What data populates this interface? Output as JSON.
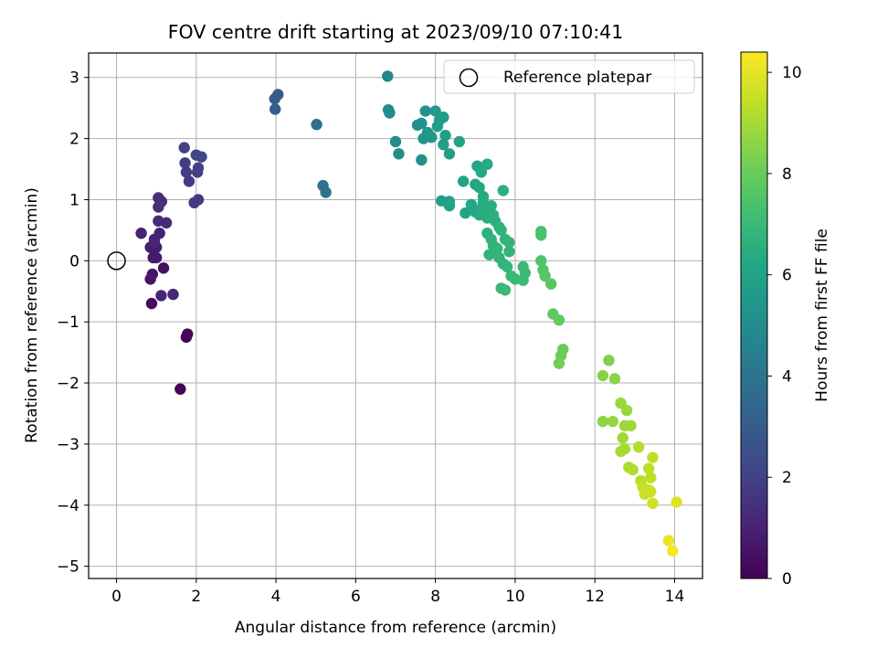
{
  "chart_data": {
    "type": "scatter",
    "title": "FOV centre drift starting at 2023/09/10 07:10:41",
    "xlabel": "Angular distance from reference (arcmin)",
    "ylabel": "Rotation from reference (arcmin)",
    "xlim": [
      -0.7,
      14.7
    ],
    "ylim": [
      -5.2,
      3.4
    ],
    "xticks": [
      "0",
      "2",
      "4",
      "6",
      "8",
      "10",
      "12",
      "14"
    ],
    "yticks": [
      "3",
      "2",
      "1",
      "0",
      "−1",
      "−2",
      "−3",
      "−4",
      "−5"
    ],
    "grid": true,
    "legend": {
      "placement": "top-right",
      "entries": [
        "Reference platepar"
      ]
    },
    "reference_point": {
      "x": 0,
      "y": 0
    },
    "colorbar": {
      "label": "Hours from first FF file",
      "ticks": [
        "0",
        "2",
        "4",
        "6",
        "8",
        "10"
      ],
      "range": [
        0,
        10.4
      ],
      "colormap": "viridis"
    },
    "points": [
      {
        "x": 1.6,
        "y": -2.1,
        "t": 0.1
      },
      {
        "x": 1.75,
        "y": -1.25,
        "t": 0.1
      },
      {
        "x": 1.78,
        "y": -1.2,
        "t": 0.15
      },
      {
        "x": 0.88,
        "y": -0.7,
        "t": 0.3
      },
      {
        "x": 1.18,
        "y": -0.12,
        "t": 0.5
      },
      {
        "x": 0.85,
        "y": -0.3,
        "t": 0.6
      },
      {
        "x": 0.9,
        "y": -0.22,
        "t": 0.65
      },
      {
        "x": 0.92,
        "y": 0.05,
        "t": 0.7
      },
      {
        "x": 1.0,
        "y": 0.05,
        "t": 0.75
      },
      {
        "x": 0.85,
        "y": 0.22,
        "t": 0.8
      },
      {
        "x": 1.0,
        "y": 0.22,
        "t": 0.85
      },
      {
        "x": 0.95,
        "y": 0.35,
        "t": 0.9
      },
      {
        "x": 1.08,
        "y": 0.45,
        "t": 0.95
      },
      {
        "x": 0.62,
        "y": 0.45,
        "t": 1.0
      },
      {
        "x": 0.95,
        "y": 0.3,
        "t": 1.05
      },
      {
        "x": 1.12,
        "y": -0.57,
        "t": 1.1
      },
      {
        "x": 1.42,
        "y": -0.55,
        "t": 1.15
      },
      {
        "x": 1.05,
        "y": 0.65,
        "t": 1.2
      },
      {
        "x": 1.25,
        "y": 0.62,
        "t": 1.25
      },
      {
        "x": 1.05,
        "y": 0.88,
        "t": 1.3
      },
      {
        "x": 1.05,
        "y": 1.03,
        "t": 1.35
      },
      {
        "x": 1.13,
        "y": 0.97,
        "t": 1.4
      },
      {
        "x": 1.95,
        "y": 0.95,
        "t": 1.7
      },
      {
        "x": 2.05,
        "y": 1.0,
        "t": 1.75
      },
      {
        "x": 1.82,
        "y": 1.3,
        "t": 1.8
      },
      {
        "x": 1.75,
        "y": 1.45,
        "t": 1.85
      },
      {
        "x": 1.72,
        "y": 1.6,
        "t": 1.9
      },
      {
        "x": 2.03,
        "y": 1.45,
        "t": 1.95
      },
      {
        "x": 2.05,
        "y": 1.52,
        "t": 2.0
      },
      {
        "x": 1.7,
        "y": 1.85,
        "t": 2.05
      },
      {
        "x": 2.0,
        "y": 1.73,
        "t": 2.1
      },
      {
        "x": 2.13,
        "y": 1.7,
        "t": 2.15
      },
      {
        "x": 3.97,
        "y": 2.65,
        "t": 2.9
      },
      {
        "x": 4.05,
        "y": 2.72,
        "t": 3.0
      },
      {
        "x": 3.98,
        "y": 2.48,
        "t": 3.05
      },
      {
        "x": 5.02,
        "y": 2.23,
        "t": 3.8
      },
      {
        "x": 5.18,
        "y": 1.23,
        "t": 3.95
      },
      {
        "x": 5.25,
        "y": 1.12,
        "t": 4.0
      },
      {
        "x": 6.8,
        "y": 3.02,
        "t": 4.8
      },
      {
        "x": 6.82,
        "y": 2.47,
        "t": 4.9
      },
      {
        "x": 6.85,
        "y": 2.42,
        "t": 4.95
      },
      {
        "x": 7.0,
        "y": 1.95,
        "t": 5.0
      },
      {
        "x": 7.08,
        "y": 1.75,
        "t": 5.05
      },
      {
        "x": 7.55,
        "y": 2.22,
        "t": 5.2
      },
      {
        "x": 7.65,
        "y": 2.25,
        "t": 5.25
      },
      {
        "x": 7.75,
        "y": 2.45,
        "t": 5.3
      },
      {
        "x": 7.7,
        "y": 2.0,
        "t": 5.35
      },
      {
        "x": 7.8,
        "y": 2.1,
        "t": 5.4
      },
      {
        "x": 7.85,
        "y": 2.05,
        "t": 5.45
      },
      {
        "x": 7.9,
        "y": 2.02,
        "t": 5.5
      },
      {
        "x": 7.65,
        "y": 1.65,
        "t": 5.2
      },
      {
        "x": 8.0,
        "y": 2.45,
        "t": 5.6
      },
      {
        "x": 8.1,
        "y": 2.3,
        "t": 5.65
      },
      {
        "x": 8.05,
        "y": 2.2,
        "t": 5.7
      },
      {
        "x": 8.2,
        "y": 2.35,
        "t": 5.75
      },
      {
        "x": 8.25,
        "y": 2.05,
        "t": 5.8
      },
      {
        "x": 8.2,
        "y": 1.9,
        "t": 5.85
      },
      {
        "x": 8.35,
        "y": 1.75,
        "t": 5.9
      },
      {
        "x": 8.6,
        "y": 1.95,
        "t": 6.0
      },
      {
        "x": 8.7,
        "y": 1.3,
        "t": 6.05
      },
      {
        "x": 8.15,
        "y": 0.98,
        "t": 5.9
      },
      {
        "x": 8.35,
        "y": 0.97,
        "t": 5.95
      },
      {
        "x": 8.35,
        "y": 0.9,
        "t": 6.0
      },
      {
        "x": 8.75,
        "y": 0.78,
        "t": 6.1
      },
      {
        "x": 8.9,
        "y": 0.92,
        "t": 6.15
      },
      {
        "x": 9.0,
        "y": 1.25,
        "t": 6.2
      },
      {
        "x": 9.05,
        "y": 1.55,
        "t": 6.25
      },
      {
        "x": 9.15,
        "y": 1.45,
        "t": 6.3
      },
      {
        "x": 9.3,
        "y": 1.58,
        "t": 6.35
      },
      {
        "x": 9.1,
        "y": 1.2,
        "t": 6.3
      },
      {
        "x": 9.2,
        "y": 1.05,
        "t": 6.35
      },
      {
        "x": 9.0,
        "y": 0.8,
        "t": 6.3
      },
      {
        "x": 9.1,
        "y": 0.75,
        "t": 6.35
      },
      {
        "x": 9.15,
        "y": 0.85,
        "t": 6.4
      },
      {
        "x": 9.2,
        "y": 0.95,
        "t": 6.4
      },
      {
        "x": 9.25,
        "y": 0.8,
        "t": 6.45
      },
      {
        "x": 9.3,
        "y": 0.7,
        "t": 6.5
      },
      {
        "x": 9.4,
        "y": 0.9,
        "t": 6.5
      },
      {
        "x": 9.45,
        "y": 0.75,
        "t": 6.55
      },
      {
        "x": 9.5,
        "y": 0.65,
        "t": 6.6
      },
      {
        "x": 9.6,
        "y": 0.55,
        "t": 6.65
      },
      {
        "x": 9.7,
        "y": 1.15,
        "t": 6.6
      },
      {
        "x": 9.3,
        "y": 0.45,
        "t": 6.6
      },
      {
        "x": 9.4,
        "y": 0.35,
        "t": 6.65
      },
      {
        "x": 9.45,
        "y": 0.25,
        "t": 6.7
      },
      {
        "x": 9.35,
        "y": 0.1,
        "t": 6.7
      },
      {
        "x": 9.55,
        "y": 0.2,
        "t": 6.75
      },
      {
        "x": 9.6,
        "y": 0.05,
        "t": 6.75
      },
      {
        "x": 9.7,
        "y": -0.05,
        "t": 6.8
      },
      {
        "x": 9.8,
        "y": -0.1,
        "t": 6.85
      },
      {
        "x": 9.65,
        "y": 0.5,
        "t": 6.7
      },
      {
        "x": 9.75,
        "y": 0.35,
        "t": 6.75
      },
      {
        "x": 9.85,
        "y": 0.3,
        "t": 6.8
      },
      {
        "x": 9.85,
        "y": 0.15,
        "t": 6.8
      },
      {
        "x": 9.9,
        "y": -0.25,
        "t": 6.9
      },
      {
        "x": 10.0,
        "y": -0.3,
        "t": 6.95
      },
      {
        "x": 9.65,
        "y": -0.45,
        "t": 6.9
      },
      {
        "x": 9.75,
        "y": -0.48,
        "t": 6.95
      },
      {
        "x": 10.2,
        "y": -0.1,
        "t": 7.0
      },
      {
        "x": 10.25,
        "y": -0.2,
        "t": 7.05
      },
      {
        "x": 10.2,
        "y": -0.32,
        "t": 7.05
      },
      {
        "x": 10.65,
        "y": 0.48,
        "t": 7.4
      },
      {
        "x": 10.65,
        "y": 0.42,
        "t": 7.45
      },
      {
        "x": 10.65,
        "y": 0.0,
        "t": 7.5
      },
      {
        "x": 10.7,
        "y": -0.15,
        "t": 7.55
      },
      {
        "x": 10.75,
        "y": -0.25,
        "t": 7.6
      },
      {
        "x": 10.9,
        "y": -0.38,
        "t": 7.7
      },
      {
        "x": 10.95,
        "y": -0.87,
        "t": 7.8
      },
      {
        "x": 11.1,
        "y": -0.97,
        "t": 7.9
      },
      {
        "x": 11.2,
        "y": -1.45,
        "t": 8.0
      },
      {
        "x": 11.15,
        "y": -1.55,
        "t": 8.05
      },
      {
        "x": 11.1,
        "y": -1.68,
        "t": 8.1
      },
      {
        "x": 12.35,
        "y": -1.63,
        "t": 8.4
      },
      {
        "x": 12.2,
        "y": -1.88,
        "t": 8.5
      },
      {
        "x": 12.5,
        "y": -1.93,
        "t": 8.55
      },
      {
        "x": 12.2,
        "y": -2.63,
        "t": 8.65
      },
      {
        "x": 12.45,
        "y": -2.63,
        "t": 8.7
      },
      {
        "x": 12.65,
        "y": -2.33,
        "t": 8.75
      },
      {
        "x": 12.8,
        "y": -2.45,
        "t": 8.8
      },
      {
        "x": 12.75,
        "y": -2.7,
        "t": 8.85
      },
      {
        "x": 12.9,
        "y": -2.7,
        "t": 8.9
      },
      {
        "x": 12.7,
        "y": -2.9,
        "t": 8.95
      },
      {
        "x": 12.65,
        "y": -3.12,
        "t": 9.0
      },
      {
        "x": 12.75,
        "y": -3.08,
        "t": 9.0
      },
      {
        "x": 12.85,
        "y": -3.38,
        "t": 9.1
      },
      {
        "x": 12.95,
        "y": -3.42,
        "t": 9.15
      },
      {
        "x": 13.1,
        "y": -3.05,
        "t": 9.2
      },
      {
        "x": 13.15,
        "y": -3.6,
        "t": 9.3
      },
      {
        "x": 13.35,
        "y": -3.4,
        "t": 9.35
      },
      {
        "x": 13.4,
        "y": -3.55,
        "t": 9.4
      },
      {
        "x": 13.45,
        "y": -3.22,
        "t": 9.4
      },
      {
        "x": 13.2,
        "y": -3.7,
        "t": 9.45
      },
      {
        "x": 13.35,
        "y": -3.75,
        "t": 9.5
      },
      {
        "x": 13.25,
        "y": -3.82,
        "t": 9.55
      },
      {
        "x": 13.4,
        "y": -3.78,
        "t": 9.6
      },
      {
        "x": 13.45,
        "y": -3.97,
        "t": 9.65
      },
      {
        "x": 14.05,
        "y": -3.95,
        "t": 9.9
      },
      {
        "x": 13.85,
        "y": -4.58,
        "t": 10.1
      },
      {
        "x": 13.95,
        "y": -4.75,
        "t": 10.3
      }
    ]
  }
}
